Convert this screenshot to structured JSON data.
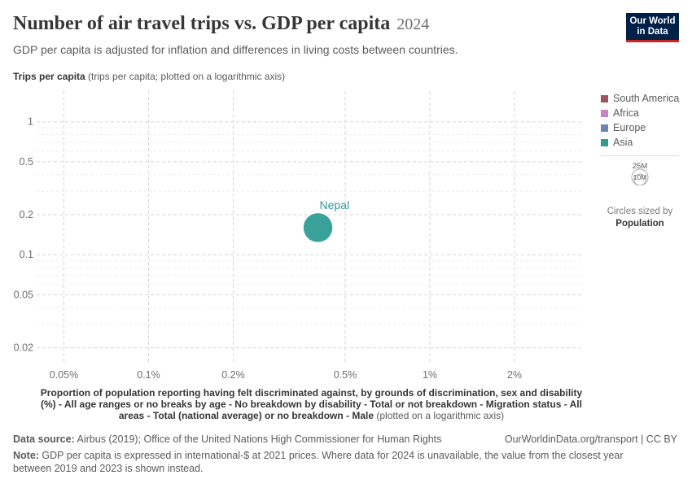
{
  "header": {
    "title": "Number of air travel trips vs. GDP per capita",
    "year": "2024",
    "subtitle": "GDP per capita is adjusted for inflation and differences in living costs between countries.",
    "logo_line1": "Our World",
    "logo_line2": "in Data"
  },
  "axis": {
    "y_title_bold": "Trips per capita",
    "y_title_rest": " (trips per capita; plotted on a logarithmic axis)",
    "x_title_bold": "Proportion of population reporting having felt discriminated against, by grounds of discrimination, sex and disability (%) - All age ranges or no breaks by age - No breakdown by disability - Total or not breakdown - Migration status - All areas - Total (national average) or no breakdown - Male",
    "x_title_rest": " (plotted on a logarithmic axis)"
  },
  "legend": {
    "items": [
      {
        "label": "South America",
        "color": "#a2545e"
      },
      {
        "label": "Africa",
        "color": "#c584c8"
      },
      {
        "label": "Europe",
        "color": "#6b84b2"
      },
      {
        "label": "Asia",
        "color": "#2e9c95"
      }
    ],
    "size_big": "25M",
    "size_small": "10M",
    "size_caption": "Circles sized by",
    "size_caption_bold": "Population"
  },
  "footer": {
    "source_label": "Data source:",
    "source_text": " Airbus (2019); Office of the United Nations High Commissioner for Human Rights",
    "url": "OurWorldinData.org/transport | CC BY",
    "note_label": "Note:",
    "note_text": " GDP per capita is expressed in international-$ at 2021 prices. Where data for 2024 is unavailable, the value from the closest year between 2019 and 2023 is shown instead."
  },
  "chart_data": {
    "type": "scatter",
    "x_scale": "log",
    "y_scale": "log",
    "x_ticks": [
      0.05,
      0.1,
      0.2,
      0.5,
      1,
      2
    ],
    "x_tick_labels": [
      "0.05%",
      "0.1%",
      "0.2%",
      "0.5%",
      "1%",
      "2%"
    ],
    "y_ticks": [
      0.02,
      0.05,
      0.1,
      0.2,
      0.5,
      1
    ],
    "y_tick_labels": [
      "0.02",
      "0.05",
      "0.1",
      "0.2",
      "0.5",
      "1"
    ],
    "xlim": [
      0.04,
      3.5
    ],
    "ylim": [
      0.015,
      1.7
    ],
    "grid": true,
    "legend_position": "top-right",
    "points": [
      {
        "label": "Nepal",
        "x": 0.4,
        "y": 0.16,
        "region": "Asia",
        "color": "#2e9c95",
        "population_millions": 30
      }
    ]
  }
}
